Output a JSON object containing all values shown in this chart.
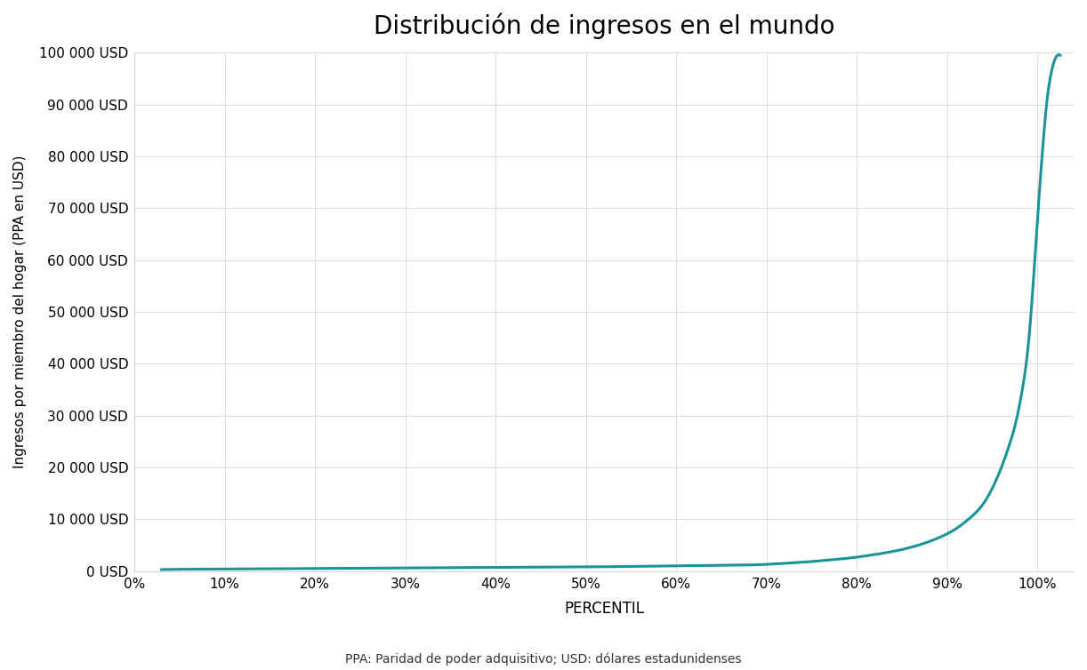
{
  "title": "Distribución de ingresos en el mundo",
  "xlabel": "PERCENTIL",
  "ylabel": "Ingresos por miembro del hogar (PPA en USD)",
  "subtitle": "PPA: Paridad de poder adquisitivo; USD: dólares estadunidenses",
  "line_color": "#1a9496",
  "line_width": 2.2,
  "background_color": "#ffffff",
  "ylim": [
    0,
    100000
  ],
  "xlim": [
    0,
    1.04
  ],
  "yticks": [
    0,
    10000,
    20000,
    30000,
    40000,
    50000,
    60000,
    70000,
    80000,
    90000,
    100000
  ],
  "xticks": [
    0,
    0.1,
    0.2,
    0.3,
    0.4,
    0.5,
    0.6,
    0.7,
    0.8,
    0.9,
    1.0
  ],
  "ytick_labels": [
    "0 USD",
    "10 000 USD",
    "20 000 USD",
    "30 000 USD",
    "40 000 USD",
    "50 000 USD",
    "60 000 USD",
    "70 000 USD",
    "80 000 USD",
    "90 000 USD",
    "100 000 USD"
  ],
  "xtick_labels": [
    "0%",
    "10%",
    "20%",
    "30%",
    "40%",
    "50%",
    "60%",
    "70%",
    "80%",
    "90%",
    "100%"
  ],
  "curve_x": [
    0.03,
    0.05,
    0.1,
    0.15,
    0.2,
    0.25,
    0.3,
    0.35,
    0.4,
    0.45,
    0.5,
    0.55,
    0.6,
    0.65,
    0.7,
    0.72,
    0.74,
    0.76,
    0.78,
    0.8,
    0.82,
    0.84,
    0.86,
    0.88,
    0.9,
    0.91,
    0.92,
    0.93,
    0.94,
    0.95,
    0.96,
    0.97,
    0.975,
    0.98,
    0.985,
    0.99,
    0.995,
    1.0,
    1.005,
    1.01,
    1.015,
    1.02,
    1.025
  ],
  "curve_y": [
    300,
    350,
    400,
    450,
    500,
    550,
    600,
    650,
    700,
    750,
    800,
    900,
    1000,
    1100,
    1300,
    1500,
    1700,
    2000,
    2300,
    2700,
    3200,
    3800,
    4600,
    5700,
    7200,
    8200,
    9500,
    11000,
    13000,
    16000,
    20000,
    25000,
    28000,
    32000,
    37000,
    44000,
    55000,
    68000,
    80000,
    90000,
    96000,
    99000,
    99500
  ]
}
